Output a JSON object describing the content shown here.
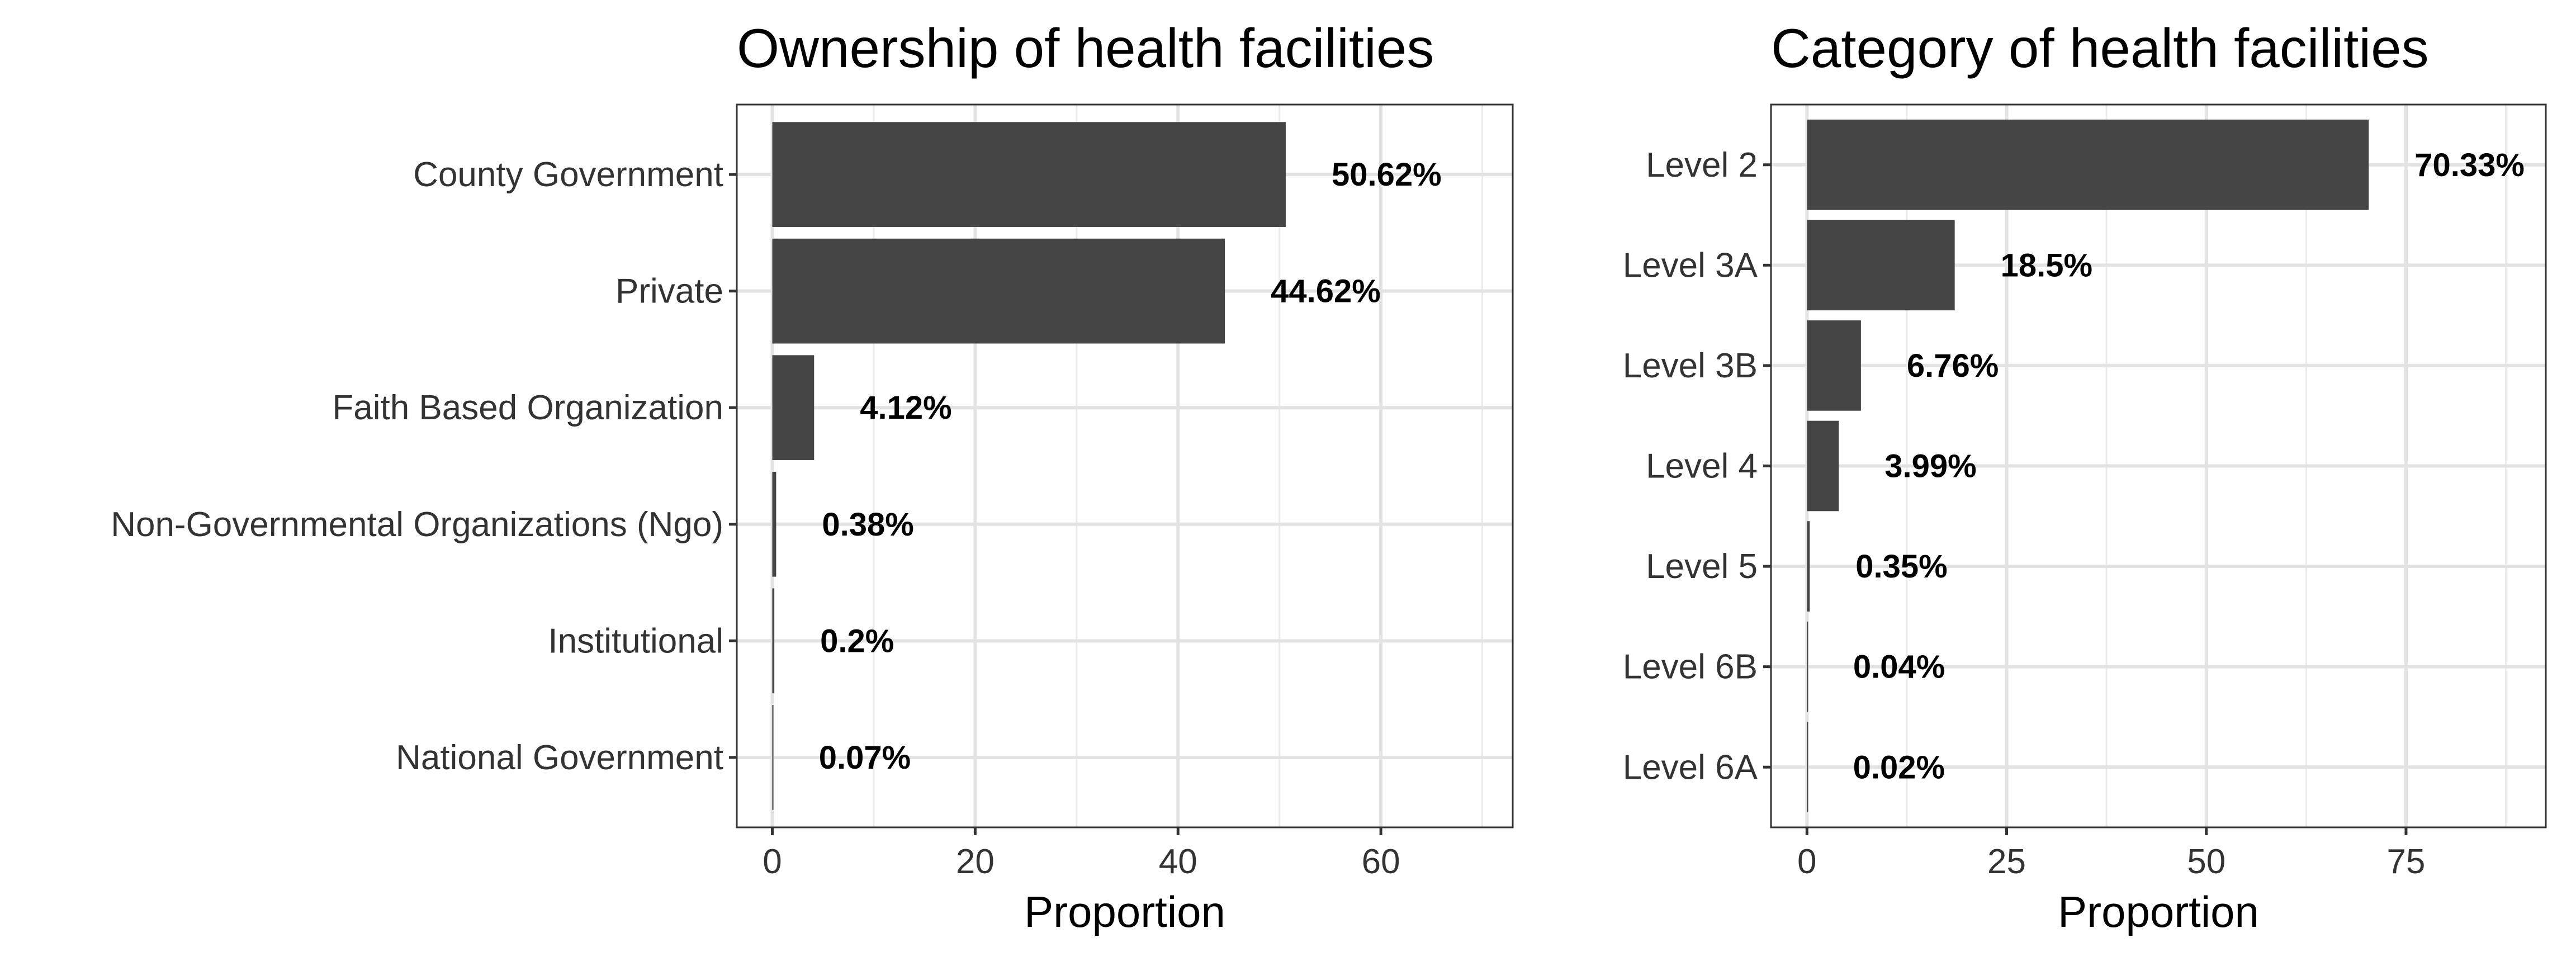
{
  "chart_data": [
    {
      "type": "bar",
      "orientation": "horizontal",
      "title": "Ownership of health facilities",
      "xlabel": "Proportion",
      "ylabel": "",
      "categories": [
        "County Government",
        "Private",
        "Faith Based Organization",
        "Non-Governmental Organizations (Ngo)",
        "Institutional",
        "National Government"
      ],
      "values": [
        50.62,
        44.62,
        4.12,
        0.38,
        0.2,
        0.07
      ],
      "value_labels": [
        "50.62%",
        "44.62%",
        "4.12%",
        "0.38%",
        "0.2%",
        "0.07%"
      ],
      "xlim": [
        -3.5,
        73
      ],
      "xticks": [
        0,
        20,
        40,
        60
      ],
      "xtick_labels": [
        "0",
        "20",
        "40",
        "60"
      ],
      "grid": true,
      "bar_color": "#454545"
    },
    {
      "type": "bar",
      "orientation": "horizontal",
      "title": "Category of health facilities",
      "xlabel": "Proportion",
      "ylabel": "",
      "categories": [
        "Level 2",
        "Level 3A",
        "Level 3B",
        "Level 4",
        "Level 5",
        "Level 6B",
        "Level 6A"
      ],
      "values": [
        70.33,
        18.5,
        6.76,
        3.99,
        0.35,
        0.04,
        0.02
      ],
      "value_labels": [
        "70.33%",
        "18.5%",
        "6.76%",
        "3.99%",
        "0.35%",
        "0.04%",
        "0.02%"
      ],
      "xlim": [
        -4.5,
        92.5
      ],
      "xticks": [
        0,
        25,
        50,
        75
      ],
      "xtick_labels": [
        "0",
        "25",
        "50",
        "75"
      ],
      "grid": true,
      "bar_color": "#454545"
    }
  ]
}
